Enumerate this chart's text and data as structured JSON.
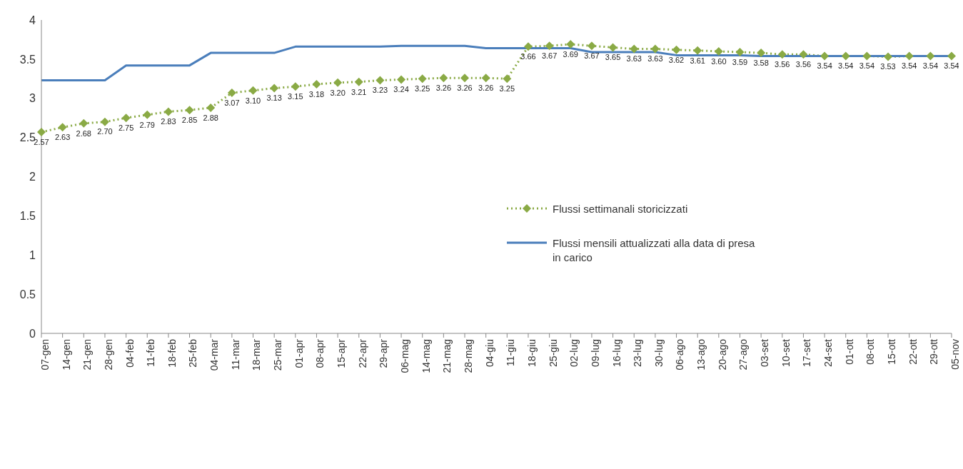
{
  "chart_data": {
    "type": "line",
    "categories": [
      "07-gen",
      "14-gen",
      "21-gen",
      "28-gen",
      "04-feb",
      "11-feb",
      "18-feb",
      "25-feb",
      "04-mar",
      "11-mar",
      "18-mar",
      "25-mar",
      "01-apr",
      "08-apr",
      "15-apr",
      "22-apr",
      "29-apr",
      "06-mag",
      "14-mag",
      "21-mag",
      "28-mag",
      "04-giu",
      "11-giu",
      "18-giu",
      "25-giu",
      "02-lug",
      "09-lug",
      "16-lug",
      "23-lug",
      "30-lug",
      "06-ago",
      "13-ago",
      "20-ago",
      "27-ago",
      "03-set",
      "10-set",
      "17-set",
      "24-set",
      "01-ott",
      "08-ott",
      "15-ott",
      "22-ott",
      "29-ott",
      "05-nov"
    ],
    "series": [
      {
        "name": "Flussi settimanali storicizzati",
        "color": "#8aaa45",
        "marker": "diamond",
        "line_style": "dotted",
        "values": [
          2.57,
          2.63,
          2.68,
          2.7,
          2.75,
          2.79,
          2.83,
          2.85,
          2.88,
          3.07,
          3.1,
          3.13,
          3.15,
          3.18,
          3.2,
          3.21,
          3.23,
          3.24,
          3.25,
          3.26,
          3.26,
          3.26,
          3.25,
          3.66,
          3.67,
          3.69,
          3.67,
          3.65,
          3.63,
          3.63,
          3.62,
          3.61,
          3.6,
          3.59,
          3.58,
          3.56,
          3.56,
          3.54,
          3.54,
          3.54,
          3.53,
          3.54,
          3.54,
          3.54
        ],
        "value_labels": [
          "2.57",
          "2.63",
          "2.68",
          "2.70",
          "2.75",
          "2.79",
          "2.83",
          "2.85",
          "2.88",
          "3.07",
          "3.10",
          "3.13",
          "3.15",
          "3.18",
          "3.20",
          "3.21",
          "3.23",
          "3.24",
          "3.25",
          "3.26",
          "3.26",
          "3.26",
          "3.25",
          "3.66",
          "3.67",
          "3.69",
          "3.67",
          "3.65",
          "3.63",
          "3.63",
          "3.62",
          "3.61",
          "3.60",
          "3.59",
          "3.58",
          "3.56",
          "3.56",
          "3.54",
          "3.54",
          "3.54",
          "3.53",
          "3.54",
          "3.54",
          "3.54"
        ]
      },
      {
        "name": "Flussi mensili attualizzati alla data di presa in carico",
        "color": "#4a7ebb",
        "marker": "none",
        "line_style": "solid",
        "values": [
          3.23,
          3.23,
          3.23,
          3.23,
          3.42,
          3.42,
          3.42,
          3.42,
          3.58,
          3.58,
          3.58,
          3.58,
          3.66,
          3.66,
          3.66,
          3.66,
          3.66,
          3.67,
          3.67,
          3.67,
          3.67,
          3.64,
          3.64,
          3.64,
          3.64,
          3.64,
          3.59,
          3.59,
          3.59,
          3.59,
          3.55,
          3.55,
          3.55,
          3.55,
          3.54,
          3.54,
          3.54,
          3.54,
          3.54,
          3.54,
          3.54,
          3.54,
          3.54,
          3.54
        ]
      }
    ],
    "ylim": [
      0,
      4
    ],
    "yticks": [
      0,
      0.5,
      1,
      1.5,
      2,
      2.5,
      3,
      3.5,
      4
    ],
    "legend": "right"
  }
}
